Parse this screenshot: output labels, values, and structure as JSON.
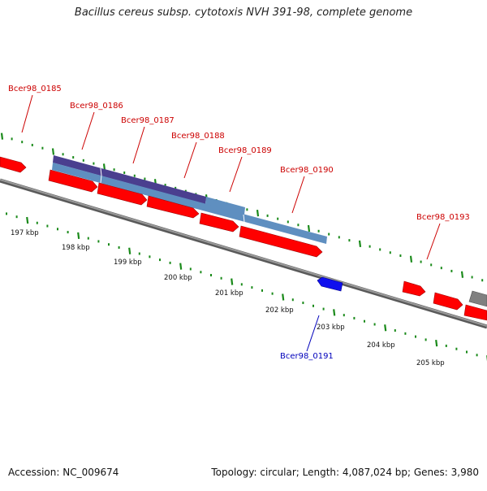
{
  "title": "Bacillus cereus subsp. cytotoxis NVH 391-98, complete genome",
  "footer": {
    "accession": "Accession: NC_009674",
    "summary": "Topology: circular; Length: 4,087,024 bp; Genes: 3,980"
  },
  "colors": {
    "forward_gene": "#ff0000",
    "reverse_gene": "#0000ee",
    "other_feature": "#808080",
    "cds_light": "#5f8fc0",
    "cds_dark": "#4a3f8f",
    "backbone": "#7a7a7a",
    "tick": "#1a8a1a",
    "label_forward": "#cc0000",
    "label_reverse": "#0000bb"
  },
  "scale_labels": [
    "197 kbp",
    "198 kbp",
    "199 kbp",
    "200 kbp",
    "201 kbp",
    "202 kbp",
    "203 kbp",
    "204 kbp",
    "205 kbp"
  ],
  "gene_labels": [
    {
      "name": "Bcer98_0185",
      "strand": "forward"
    },
    {
      "name": "Bcer98_0186",
      "strand": "forward"
    },
    {
      "name": "Bcer98_0187",
      "strand": "forward"
    },
    {
      "name": "Bcer98_0188",
      "strand": "forward"
    },
    {
      "name": "Bcer98_0189",
      "strand": "forward"
    },
    {
      "name": "Bcer98_0190",
      "strand": "forward"
    },
    {
      "name": "Bcer98_0193",
      "strand": "forward"
    },
    {
      "name": "Bcer98_0191",
      "strand": "reverse"
    }
  ]
}
